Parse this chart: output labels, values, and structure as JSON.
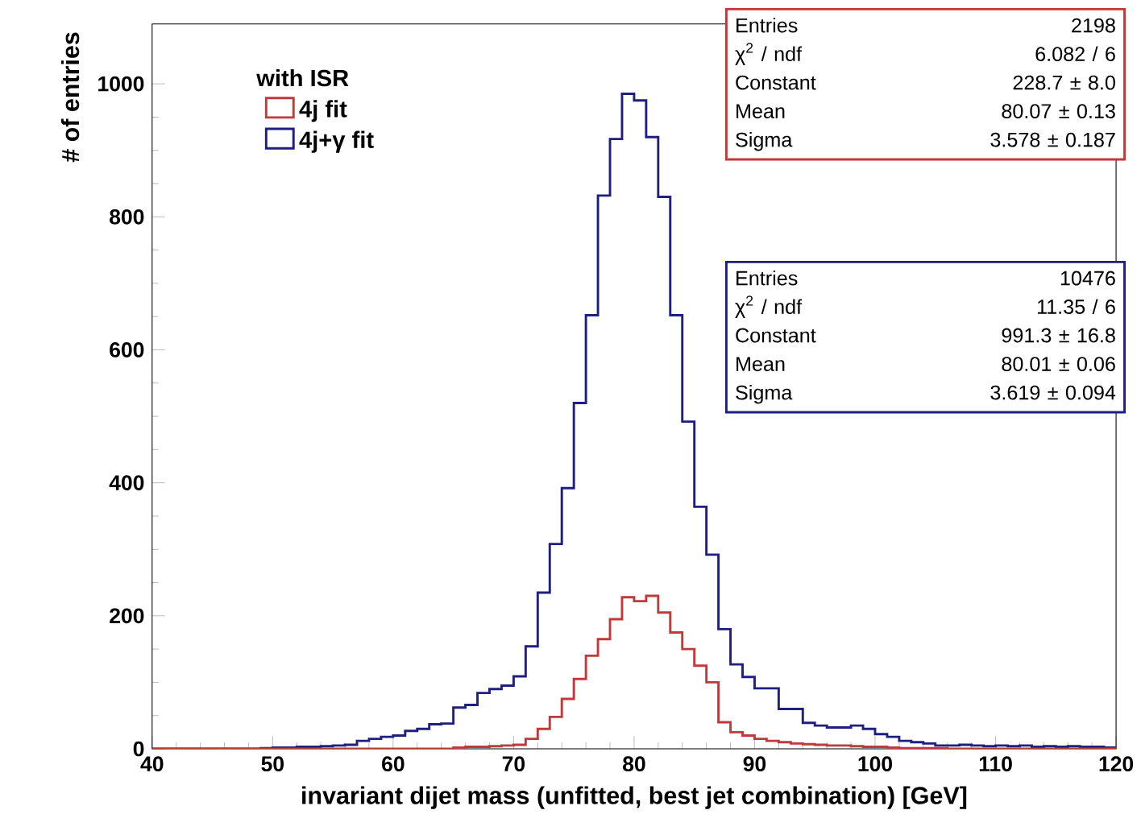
{
  "chart_data": {
    "type": "histogram",
    "xlabel": "invariant dijet mass (unfitted, best jet combination) [GeV]",
    "ylabel": "# of entries",
    "legend_title": "with ISR",
    "bins": [
      40,
      41,
      42,
      43,
      44,
      45,
      46,
      47,
      48,
      49,
      50,
      51,
      52,
      53,
      54,
      55,
      56,
      57,
      58,
      59,
      60,
      61,
      62,
      63,
      64,
      65,
      66,
      67,
      68,
      69,
      70,
      71,
      72,
      73,
      74,
      75,
      76,
      77,
      78,
      79,
      80,
      81,
      82,
      83,
      84,
      85,
      86,
      87,
      88,
      89,
      90,
      91,
      92,
      93,
      94,
      95,
      96,
      97,
      98,
      99,
      100,
      101,
      102,
      103,
      104,
      105,
      106,
      107,
      108,
      109,
      110,
      111,
      112,
      113,
      114,
      115,
      116,
      117,
      118,
      119,
      120
    ],
    "series": [
      {
        "name": "4j+γ fit",
        "color": "#1f1f80",
        "values": [
          0,
          0,
          0,
          0,
          0,
          0,
          0,
          0,
          0,
          1,
          2,
          2,
          3,
          3,
          4,
          5,
          6,
          12,
          15,
          18,
          20,
          27,
          30,
          37,
          38,
          62,
          66,
          84,
          90,
          95,
          109,
          154,
          235,
          308,
          392,
          520,
          652,
          832,
          917,
          985,
          975,
          920,
          830,
          652,
          492,
          364,
          292,
          180,
          127,
          108,
          91,
          91,
          60,
          60,
          39,
          35,
          32,
          32,
          35,
          30,
          22,
          18,
          12,
          10,
          8,
          5,
          5,
          6,
          5,
          4,
          5,
          4,
          5,
          3,
          4,
          3,
          4,
          3,
          3,
          2
        ]
      },
      {
        "name": "4j fit",
        "color": "#c0393b",
        "values": [
          0,
          0,
          0,
          0,
          0,
          0,
          0,
          0,
          0,
          0,
          0,
          0,
          0,
          0,
          0,
          0,
          0,
          0,
          0,
          0,
          0,
          0,
          0,
          0,
          0,
          2,
          3,
          3,
          4,
          5,
          6,
          15,
          30,
          48,
          75,
          105,
          140,
          165,
          195,
          228,
          222,
          230,
          205,
          175,
          150,
          125,
          100,
          40,
          25,
          20,
          15,
          12,
          10,
          8,
          7,
          6,
          5,
          5,
          4,
          3,
          3,
          2,
          1,
          1,
          1,
          1,
          0,
          0,
          0,
          0,
          0,
          0,
          0,
          0,
          0,
          0,
          0,
          0,
          0,
          0
        ]
      }
    ],
    "xlim": [
      40,
      120
    ],
    "ylim": [
      0,
      1090
    ],
    "xticks": [
      40,
      50,
      60,
      70,
      80,
      90,
      100,
      110,
      120
    ],
    "yticks": [
      0,
      200,
      400,
      600,
      800,
      1000
    ],
    "grid": false,
    "legend": "top left",
    "annotations": [
      "Entries",
      "2198",
      "χ$^{2}$ / ndf",
      "6.082 / 6",
      "Constant",
      "228.7 ± 8.0",
      "Mean",
      "80.07 ± 0.13",
      "Sigma",
      "3.578 ± 0.187",
      "Entries",
      "10476",
      "χ$^{2}$ / ndf",
      "11.35 / 6",
      "Constant",
      "991.3 ± 16.8",
      "Mean",
      "80.01 ± 0.06",
      "Sigma",
      "3.619 ± 0.094"
    ]
  }
}
